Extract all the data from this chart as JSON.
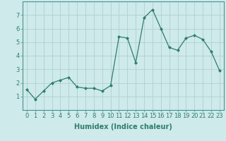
{
  "xlabel": "Humidex (Indice chaleur)",
  "x": [
    0,
    1,
    2,
    3,
    4,
    5,
    6,
    7,
    8,
    9,
    10,
    11,
    12,
    13,
    14,
    15,
    16,
    17,
    18,
    19,
    20,
    21,
    22,
    23
  ],
  "y": [
    1.5,
    0.8,
    1.4,
    2.0,
    2.2,
    2.4,
    1.7,
    1.6,
    1.6,
    1.4,
    1.8,
    5.4,
    5.3,
    3.5,
    6.8,
    7.4,
    6.0,
    4.6,
    4.4,
    5.3,
    5.5,
    5.2,
    4.3,
    2.9
  ],
  "line_color": "#2e7d6e",
  "marker": "D",
  "marker_size": 2.0,
  "line_width": 0.9,
  "bg_color": "#ceeaea",
  "grid_color": "#afd0d0",
  "ylim": [
    0,
    8
  ],
  "xlim": [
    -0.5,
    23.5
  ],
  "yticks": [
    1,
    2,
    3,
    4,
    5,
    6,
    7
  ],
  "xticks": [
    0,
    1,
    2,
    3,
    4,
    5,
    6,
    7,
    8,
    9,
    10,
    11,
    12,
    13,
    14,
    15,
    16,
    17,
    18,
    19,
    20,
    21,
    22,
    23
  ],
  "xlabel_fontsize": 7,
  "tick_fontsize": 6,
  "axis_color": "#4a9090"
}
